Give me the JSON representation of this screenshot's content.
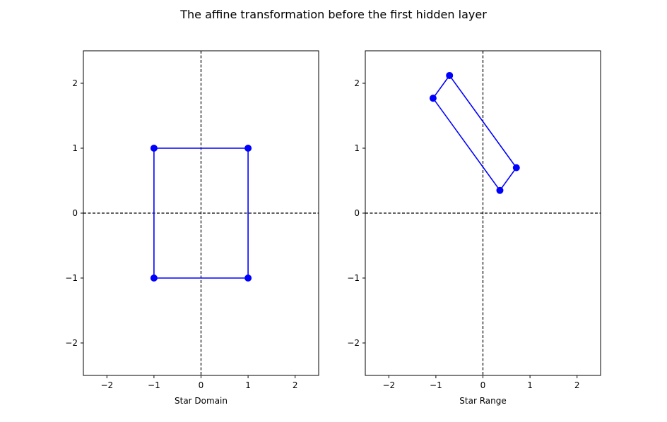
{
  "figure": {
    "title": "The affine transformation before the first hidden layer"
  },
  "chart_data": [
    {
      "type": "line",
      "closed": true,
      "xlabel": "Star Domain",
      "ylabel": "",
      "xlim": [
        -2.5,
        2.5
      ],
      "ylim": [
        -2.5,
        2.5
      ],
      "xticks": [
        -2,
        -1,
        0,
        1,
        2
      ],
      "yticks": [
        -2,
        -1,
        0,
        1,
        2
      ],
      "xtick_labels": [
        "−2",
        "−1",
        "0",
        "1",
        "2"
      ],
      "ytick_labels": [
        "−2",
        "−1",
        "0",
        "1",
        "2"
      ],
      "reference_lines": {
        "x": 0,
        "y": 0,
        "style": "dashed"
      },
      "grid": false,
      "series": [
        {
          "color": "#0000ff",
          "points": [
            [
              -1,
              -1
            ],
            [
              1,
              -1
            ],
            [
              1,
              1
            ],
            [
              -1,
              1
            ]
          ]
        }
      ]
    },
    {
      "type": "line",
      "closed": true,
      "xlabel": "Star Range",
      "ylabel": "",
      "xlim": [
        -2.5,
        2.5
      ],
      "ylim": [
        -2.5,
        2.5
      ],
      "xticks": [
        -2,
        -1,
        0,
        1,
        2
      ],
      "yticks": [
        -2,
        -1,
        0,
        1,
        2
      ],
      "xtick_labels": [
        "−2",
        "−1",
        "0",
        "1",
        "2"
      ],
      "ytick_labels": [
        "−2",
        "−1",
        "0",
        "1",
        "2"
      ],
      "reference_lines": {
        "x": 0,
        "y": 0,
        "style": "dashed"
      },
      "grid": false,
      "series": [
        {
          "color": "#0000ff",
          "points": [
            [
              0.36,
              0.35
            ],
            [
              0.71,
              0.7
            ],
            [
              -0.71,
              2.12
            ],
            [
              -1.06,
              1.77
            ]
          ]
        }
      ]
    }
  ]
}
